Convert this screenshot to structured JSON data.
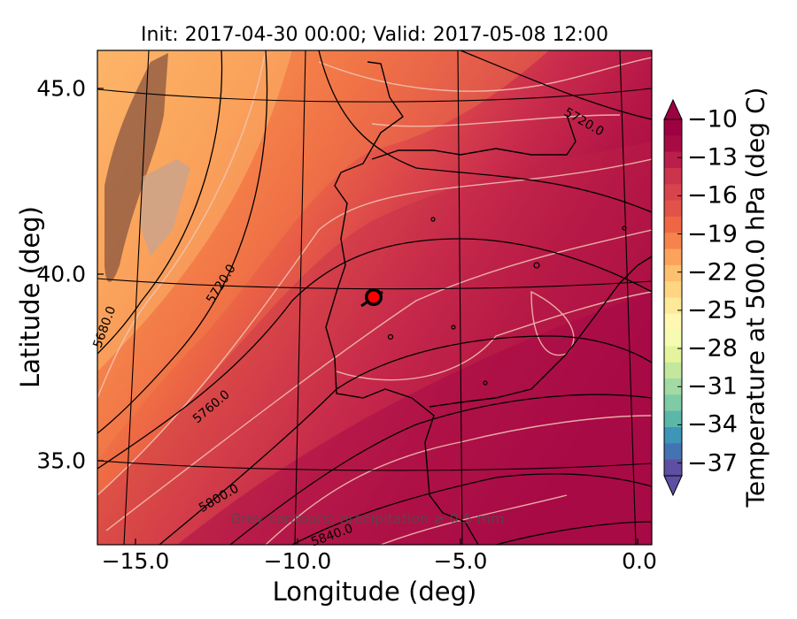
{
  "title": "Init: 2017-04-30 00:00; Valid: 2017-05-08 12:00",
  "xlabel": "Longitude (deg)",
  "ylabel": "Latitude (deg)",
  "colorbar": {
    "label": "Temperature at 500.0 hPa (deg C)",
    "ticks": [
      "−10",
      "−13",
      "−16",
      "−19",
      "−22",
      "−25",
      "−28",
      "−31",
      "−34",
      "−37"
    ],
    "colors": [
      "#9e0142",
      "#a80b44",
      "#bb1e4a",
      "#cc334c",
      "#d8444c",
      "#e25249",
      "#ef6645",
      "#f6834b",
      "#fba35d",
      "#fdc06f",
      "#fed582",
      "#fee999",
      "#fff7b2",
      "#f6fbb2",
      "#e4f49d",
      "#c4e79e",
      "#a2d9a4",
      "#7ecba5",
      "#5bb7a9",
      "#3d95b8",
      "#4473b3",
      "#5e4fa2"
    ],
    "range": [
      -37,
      -10
    ]
  },
  "xticks": [
    "−15.0",
    "−10.0",
    "−5.0",
    "0.0"
  ],
  "yticks": [
    "45.0",
    "40.0",
    "35.0"
  ],
  "note": "Grey contours: precipitation ≥ 0.5 mm",
  "contour_labels": [
    "5720.0",
    "5720.0",
    "5680.0",
    "5760.0",
    "5800.0",
    "5840.0"
  ],
  "marker_color": "#ff0000"
}
